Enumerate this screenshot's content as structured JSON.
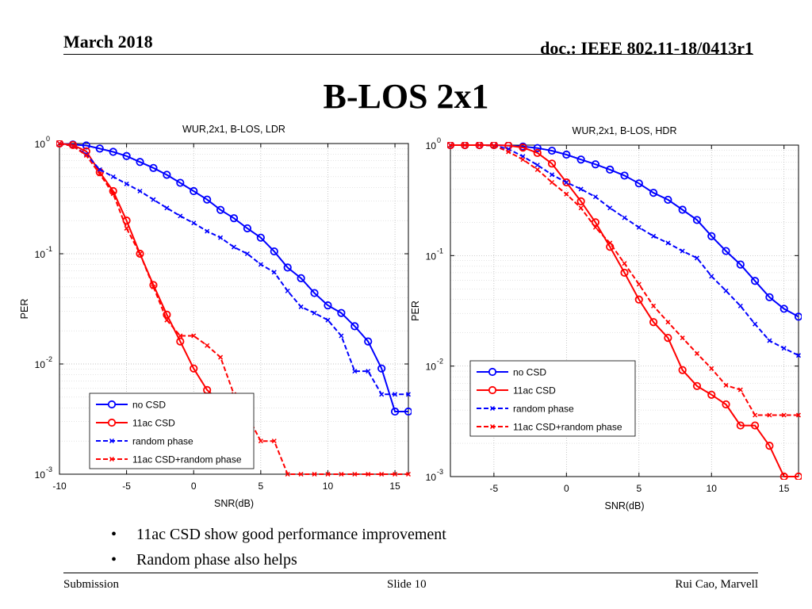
{
  "header": {
    "date": "March 2018",
    "doc": "doc.: IEEE 802.11-18/0413r1",
    "title": "B-LOS 2x1"
  },
  "colors": {
    "blue": "#0000ff",
    "red": "#ff0000"
  },
  "chart_data": [
    {
      "type": "line",
      "title": "WUR,2x1, B-LOS, LDR",
      "xlabel": "SNR(dB)",
      "ylabel": "PER",
      "yscale": "log",
      "xlim": [
        -10,
        16
      ],
      "ylim": [
        0.001,
        1
      ],
      "xticks": [
        -10,
        -5,
        0,
        5,
        10,
        15
      ],
      "yticks": [
        {
          "value": 1,
          "base": "10",
          "exp": "0"
        },
        {
          "value": 0.1,
          "base": "10",
          "exp": "-1"
        },
        {
          "value": 0.01,
          "base": "10",
          "exp": "-2"
        },
        {
          "value": 0.001,
          "base": "10",
          "exp": "-3"
        }
      ],
      "legend": "bottom-left",
      "series": [
        {
          "name": "no CSD",
          "color": "#0000ff",
          "dash": false,
          "marker": "circle",
          "x": [
            -10,
            -9,
            -8,
            -7,
            -6,
            -5,
            -4,
            -3,
            -2,
            -1,
            0,
            1,
            2,
            3,
            4,
            5,
            6,
            7,
            8,
            9,
            10,
            11,
            12,
            13,
            14,
            15,
            16
          ],
          "y": [
            1.0,
            0.98,
            0.96,
            0.9,
            0.84,
            0.77,
            0.68,
            0.6,
            0.52,
            0.44,
            0.37,
            0.31,
            0.25,
            0.21,
            0.17,
            0.14,
            0.105,
            0.075,
            0.06,
            0.044,
            0.034,
            0.029,
            0.022,
            0.016,
            0.0091,
            0.0037,
            0.0037
          ]
        },
        {
          "name": "11ac CSD",
          "color": "#ff0000",
          "dash": false,
          "marker": "circle",
          "x": [
            -10,
            -9,
            -8,
            -7,
            -6,
            -5,
            -4,
            -3,
            -2,
            -1,
            0,
            1,
            2
          ],
          "y": [
            1.0,
            0.97,
            0.85,
            0.55,
            0.37,
            0.2,
            0.1,
            0.052,
            0.028,
            0.016,
            0.0091,
            0.0058,
            0.0045
          ]
        },
        {
          "name": "random phase",
          "color": "#0000ff",
          "dash": true,
          "marker": "x",
          "x": [
            -10,
            -9,
            -8,
            -7,
            -6,
            -5,
            -4,
            -3,
            -2,
            -1,
            0,
            1,
            2,
            3,
            4,
            5,
            6,
            7,
            8,
            9,
            10,
            11,
            12,
            13,
            14,
            15,
            16
          ],
          "y": [
            1.0,
            0.95,
            0.8,
            0.58,
            0.5,
            0.43,
            0.37,
            0.31,
            0.26,
            0.22,
            0.19,
            0.16,
            0.14,
            0.115,
            0.1,
            0.08,
            0.068,
            0.046,
            0.033,
            0.029,
            0.025,
            0.018,
            0.0086,
            0.0086,
            0.0053,
            0.0053,
            0.0053
          ]
        },
        {
          "name": "11ac CSD+random phase",
          "color": "#ff0000",
          "dash": true,
          "marker": "x",
          "x": [
            -10,
            -9,
            -8,
            -7,
            -6,
            -5,
            -4,
            -3,
            -2,
            -1,
            0,
            1,
            2,
            3,
            4,
            5,
            6,
            7,
            8,
            9,
            10,
            11,
            12,
            13,
            14,
            15,
            16
          ],
          "y": [
            1.0,
            0.95,
            0.78,
            0.53,
            0.35,
            0.17,
            0.1,
            0.05,
            0.025,
            0.018,
            0.018,
            0.0147,
            0.0115,
            0.0053,
            0.0034,
            0.002,
            0.002,
            0.001,
            0.001,
            0.001,
            0.001,
            0.001,
            0.001,
            0.001,
            0.001,
            0.001,
            0.001
          ]
        }
      ]
    },
    {
      "type": "line",
      "title": "WUR,2x1, B-LOS, HDR",
      "xlabel": "SNR(dB)",
      "ylabel": "PER",
      "yscale": "log",
      "xlim": [
        -8,
        16
      ],
      "ylim": [
        0.001,
        1
      ],
      "xticks": [
        -5,
        0,
        5,
        10,
        15
      ],
      "yticks": [
        {
          "value": 1,
          "base": "10",
          "exp": "0"
        },
        {
          "value": 0.1,
          "base": "10",
          "exp": "-1"
        },
        {
          "value": 0.01,
          "base": "10",
          "exp": "-2"
        },
        {
          "value": 0.001,
          "base": "10",
          "exp": "-3"
        }
      ],
      "legend": "bottom-right",
      "series": [
        {
          "name": "no CSD",
          "color": "#0000ff",
          "dash": false,
          "marker": "circle",
          "x": [
            -8,
            -7,
            -6,
            -5,
            -4,
            -3,
            -2,
            -1,
            0,
            1,
            2,
            3,
            4,
            5,
            6,
            7,
            8,
            9,
            10,
            11,
            12,
            13,
            14,
            15,
            16
          ],
          "y": [
            1.0,
            1.0,
            1.0,
            1.0,
            0.99,
            0.97,
            0.94,
            0.89,
            0.82,
            0.74,
            0.67,
            0.6,
            0.53,
            0.45,
            0.37,
            0.32,
            0.26,
            0.21,
            0.15,
            0.11,
            0.083,
            0.059,
            0.042,
            0.033,
            0.028
          ]
        },
        {
          "name": "11ac CSD",
          "color": "#ff0000",
          "dash": false,
          "marker": "circle",
          "x": [
            -8,
            -7,
            -6,
            -5,
            -4,
            -3,
            -2,
            -1,
            0,
            1,
            2,
            3,
            4,
            5,
            6,
            7,
            8,
            9,
            10,
            11,
            12,
            13,
            14,
            15,
            16
          ],
          "y": [
            1.0,
            1.0,
            1.0,
            1.0,
            0.99,
            0.95,
            0.85,
            0.68,
            0.46,
            0.31,
            0.2,
            0.12,
            0.07,
            0.04,
            0.025,
            0.018,
            0.0092,
            0.0066,
            0.0055,
            0.0045,
            0.0029,
            0.0029,
            0.0019,
            0.001,
            0.001
          ]
        },
        {
          "name": "random phase",
          "color": "#0000ff",
          "dash": true,
          "marker": "x",
          "x": [
            -8,
            -7,
            -6,
            -5,
            -4,
            -3,
            -2,
            -1,
            0,
            1,
            2,
            3,
            4,
            5,
            6,
            7,
            8,
            9,
            10,
            11,
            12,
            13,
            14,
            15,
            16
          ],
          "y": [
            1.0,
            1.0,
            1.0,
            0.99,
            0.92,
            0.79,
            0.66,
            0.54,
            0.46,
            0.4,
            0.34,
            0.27,
            0.22,
            0.18,
            0.15,
            0.13,
            0.11,
            0.095,
            0.065,
            0.048,
            0.035,
            0.024,
            0.017,
            0.0145,
            0.0125
          ]
        },
        {
          "name": "11ac CSD+random phase",
          "color": "#ff0000",
          "dash": true,
          "marker": "x",
          "x": [
            -8,
            -7,
            -6,
            -5,
            -4,
            -3,
            -2,
            -1,
            0,
            1,
            2,
            3,
            4,
            5,
            6,
            7,
            8,
            9,
            10,
            11,
            12,
            13,
            14,
            15,
            16
          ],
          "y": [
            1.0,
            1.0,
            1.0,
            0.99,
            0.87,
            0.74,
            0.6,
            0.46,
            0.36,
            0.27,
            0.18,
            0.13,
            0.085,
            0.055,
            0.035,
            0.025,
            0.018,
            0.013,
            0.0095,
            0.0067,
            0.0061,
            0.0036,
            0.0036,
            0.0036,
            0.0036
          ]
        }
      ]
    }
  ],
  "bullets": [
    "11ac CSD show good performance improvement",
    "Random phase also helps"
  ],
  "footer": {
    "left": "Submission",
    "center": "Slide 10",
    "right": "Rui Cao, Marvell"
  }
}
